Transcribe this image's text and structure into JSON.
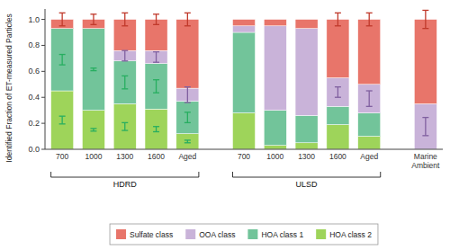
{
  "chart_data": {
    "type": "bar",
    "stacked": true,
    "ylabel": "Identified Fraction of ET-measured Particles",
    "categories": [
      "700",
      "1000",
      "1300",
      "1600",
      "Aged",
      "700",
      "1000",
      "1300",
      "1600",
      "Aged",
      "Marine\nAmbient"
    ],
    "category_groups": [
      {
        "name": "HDRD",
        "from": 0,
        "to": 4
      },
      {
        "name": "ULSD",
        "from": 5,
        "to": 9
      }
    ],
    "series": [
      {
        "name": "Sulfate class",
        "color": "#E8756A",
        "error_color": "#C0392B",
        "values": [
          0.07,
          0.07,
          0.24,
          0.24,
          0.53,
          0.05,
          0.05,
          0.07,
          0.45,
          0.5,
          0.65
        ],
        "errors": [
          0.05,
          0.04,
          0.05,
          0.04,
          0.05,
          null,
          null,
          null,
          0.05,
          0.05,
          0.07
        ]
      },
      {
        "name": "OOA class",
        "color": "#C9B3D9",
        "error_color": "#8060A0",
        "values": [
          0.0,
          0.0,
          0.08,
          0.1,
          0.1,
          0.05,
          0.65,
          0.67,
          0.22,
          0.22,
          0.35
        ],
        "errors": [
          null,
          null,
          0.04,
          0.04,
          0.06,
          null,
          null,
          null,
          0.04,
          0.06,
          0.07
        ]
      },
      {
        "name": "HOA class 1",
        "color": "#72C49A",
        "error_color": "#27AE60",
        "values": [
          0.48,
          0.63,
          0.33,
          0.35,
          0.25,
          0.62,
          0.27,
          0.21,
          0.14,
          0.18,
          0.0
        ],
        "errors": [
          0.04,
          0.01,
          0.05,
          0.05,
          0.04,
          null,
          null,
          null,
          null,
          null,
          null
        ]
      },
      {
        "name": "HOA class 2",
        "color": "#9ED45A",
        "error_color": "#27AE60",
        "values": [
          0.45,
          0.3,
          0.35,
          0.31,
          0.12,
          0.28,
          0.03,
          0.05,
          0.19,
          0.1,
          0.0
        ],
        "errors": [
          0.03,
          0.01,
          0.03,
          0.02,
          0.01,
          null,
          null,
          null,
          null,
          null,
          null
        ]
      }
    ],
    "ylim": [
      0,
      1.08
    ],
    "yticks": [
      {
        "value": 0,
        "label": "0.0"
      },
      0.2,
      0.4,
      0.6,
      0.8,
      {
        "value": 1,
        "label": "1.0"
      }
    ],
    "grid": false,
    "legend": "bottom"
  }
}
